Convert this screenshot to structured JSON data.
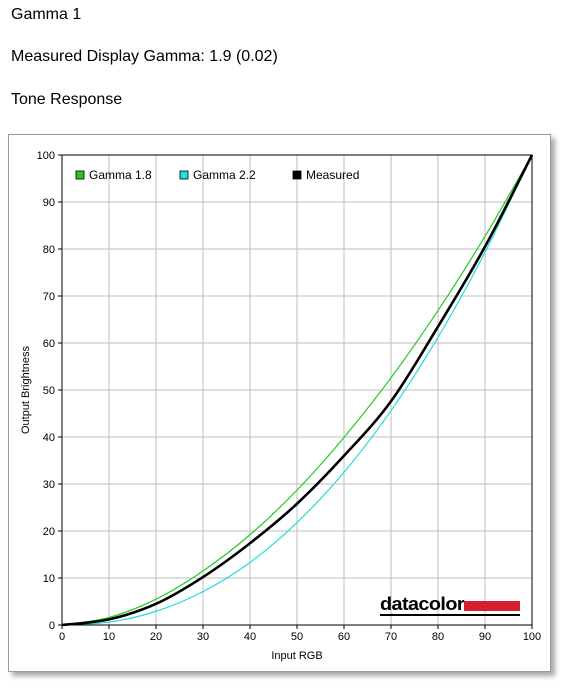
{
  "header": {
    "title": "Gamma 1",
    "measured_gamma": "Measured Display Gamma: 1.9 (0.02)",
    "section": "Tone Response"
  },
  "logo_text": "datacolor",
  "colors": {
    "gamma18": "#22cc22",
    "gamma22": "#22dddd",
    "measured": "#000000",
    "brand": "#d42030",
    "grid": "#bdbdbd"
  },
  "chart_data": {
    "type": "line",
    "title": "",
    "xlabel": "Input RGB",
    "ylabel": "Output Brightness",
    "xlim": [
      0,
      100
    ],
    "ylim": [
      0,
      100
    ],
    "xticks": [
      0,
      10,
      20,
      30,
      40,
      50,
      60,
      70,
      80,
      90,
      100
    ],
    "yticks": [
      0,
      10,
      20,
      30,
      40,
      50,
      60,
      70,
      80,
      90,
      100
    ],
    "grid": true,
    "legend_position": "top-left",
    "series": [
      {
        "name": "Gamma 1.8",
        "color": "#22cc22",
        "x": [
          0,
          10,
          20,
          30,
          40,
          50,
          60,
          70,
          80,
          90,
          100
        ],
        "y": [
          0,
          1.6,
          5.5,
          11.5,
          19.2,
          28.7,
          39.9,
          52.6,
          66.9,
          82.7,
          100
        ]
      },
      {
        "name": "Gamma 2.2",
        "color": "#22dddd",
        "x": [
          0,
          10,
          20,
          30,
          40,
          50,
          60,
          70,
          80,
          90,
          100
        ],
        "y": [
          0,
          0.6,
          2.9,
          7.1,
          13.3,
          21.8,
          32.5,
          45.6,
          61.2,
          79.3,
          100
        ]
      },
      {
        "name": "Measured",
        "color": "#000000",
        "x": [
          0,
          10,
          20,
          30,
          40,
          50,
          60,
          70,
          80,
          90,
          100
        ],
        "y": [
          0,
          1.2,
          4.5,
          10.2,
          17.4,
          25.8,
          36.0,
          47.6,
          63.5,
          80.5,
          100
        ]
      }
    ]
  }
}
